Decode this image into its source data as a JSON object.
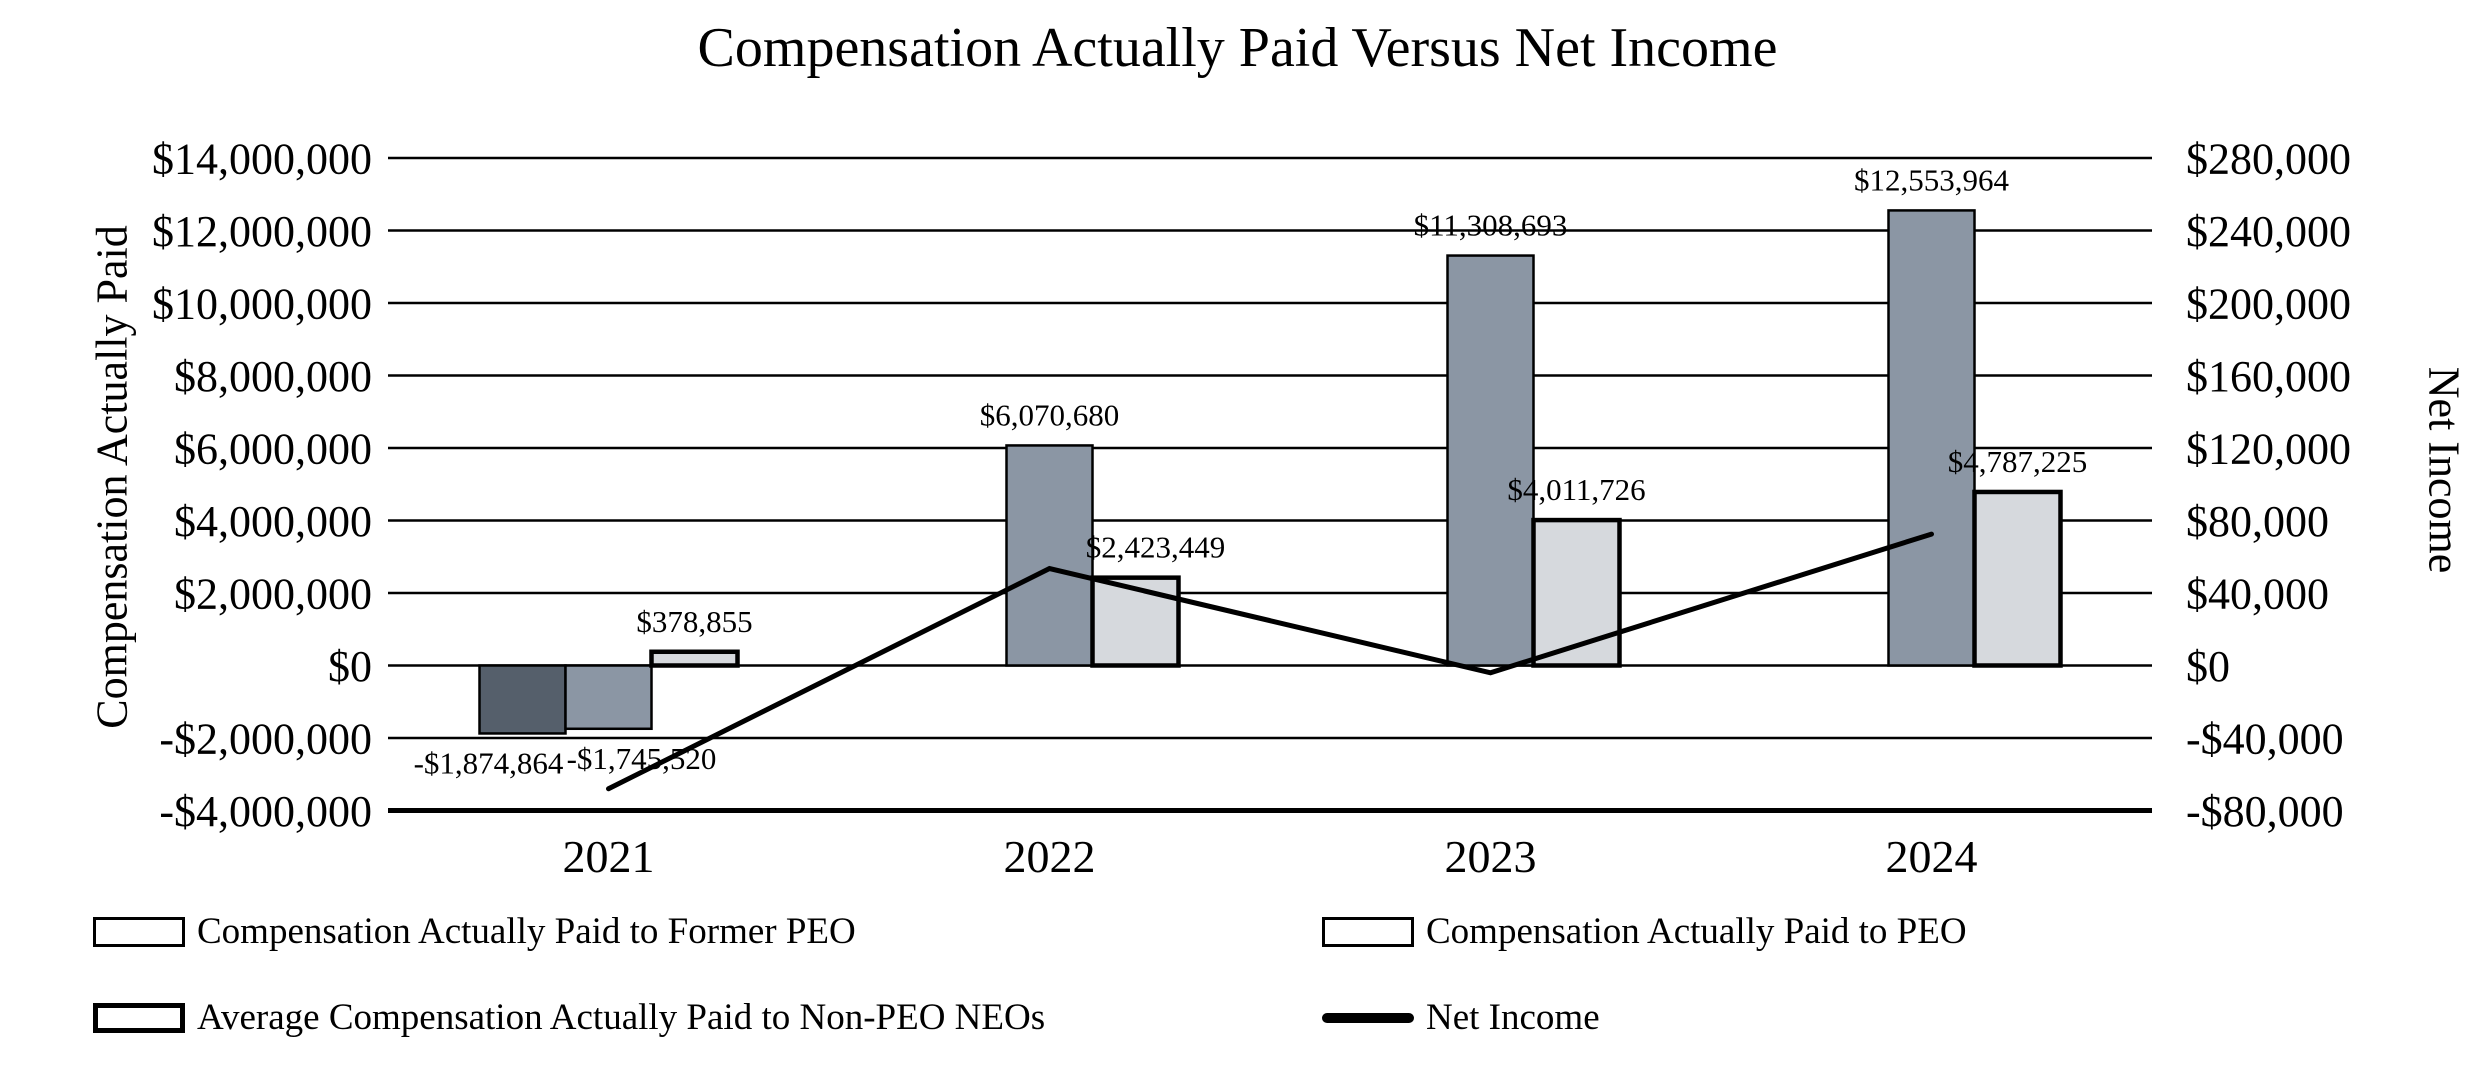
{
  "title": "Compensation Actually Paid Versus Net Income",
  "colors": {
    "former_peo_bar": "#555f6b",
    "peo_bar": "#8b96a4",
    "non_peo_neos_bar": "#d6d9dd",
    "net_income_line": "#000000",
    "gridline": "#000000",
    "background": "#ffffff",
    "text": "#000000"
  },
  "legend": {
    "items": [
      {
        "label": "Compensation Actually Paid to Former PEO",
        "swatch": "bar-dark"
      },
      {
        "label": "Compensation Actually Paid to PEO",
        "swatch": "bar-medium"
      },
      {
        "label": "Average Compensation Actually Paid to Non-PEO NEOs",
        "swatch": "bar-light"
      },
      {
        "label": "Net Income",
        "swatch": "line"
      }
    ]
  },
  "chart_data": {
    "type": "combo-bar-line",
    "title": "Compensation Actually Paid Versus Net Income",
    "categories": [
      "2021",
      "2022",
      "2023",
      "2024"
    ],
    "grid": true,
    "legend_position": "bottom",
    "left_axis": {
      "label": "Compensation Actually Paid",
      "min": -4000000,
      "max": 14000000,
      "step": 2000000,
      "ticks": [
        "$14,000,000",
        "$12,000,000",
        "$10,000,000",
        "$8,000,000",
        "$6,000,000",
        "$4,000,000",
        "$2,000,000",
        "$0",
        "-$2,000,000",
        "-$4,000,000"
      ]
    },
    "right_axis": {
      "label": "Net Income",
      "min": -80000,
      "max": 280000,
      "step": 40000,
      "ticks": [
        "$280,000",
        "$240,000",
        "$200,000",
        "$160,000",
        "$120,000",
        "$80,000",
        "$40,000",
        "$0",
        "-$40,000",
        "-$80,000"
      ]
    },
    "series": [
      {
        "name": "Compensation Actually Paid to Former PEO",
        "type": "bar",
        "axis": "left",
        "color": "#555f6b",
        "values": [
          -1874864,
          null,
          null,
          null
        ],
        "labels": [
          "-$1,874,864",
          "",
          "",
          ""
        ]
      },
      {
        "name": "Compensation Actually Paid to PEO",
        "type": "bar",
        "axis": "left",
        "color": "#8b96a4",
        "values": [
          -1745520,
          6070680,
          11308693,
          12553964
        ],
        "labels": [
          "-$1,745,520",
          "$6,070,680",
          "$11,308,693",
          "$12,553,964"
        ]
      },
      {
        "name": "Average Compensation Actually Paid to Non-PEO NEOs",
        "type": "bar",
        "axis": "left",
        "color": "#d6d9dd",
        "values": [
          378855,
          2423449,
          4011726,
          4787225
        ],
        "labels": [
          "$378,855",
          "$2,423,449",
          "$4,011,726",
          "$4,787,225"
        ]
      },
      {
        "name": "Net Income",
        "type": "line",
        "axis": "right",
        "color": "#000000",
        "estimated_from_pixels": true,
        "values": [
          -68000,
          53500,
          -4000,
          72500
        ]
      }
    ]
  }
}
